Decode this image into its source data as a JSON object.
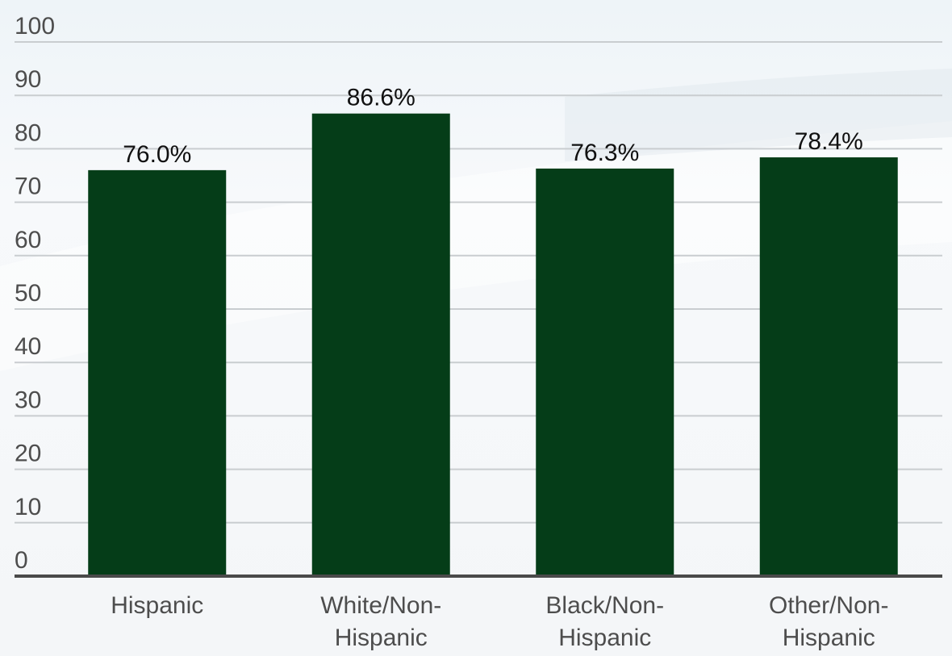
{
  "chart_data": {
    "type": "bar",
    "categories": [
      [
        "Hispanic"
      ],
      [
        "White/Non-",
        "Hispanic"
      ],
      [
        "Black/Non-",
        "Hispanic"
      ],
      [
        "Other/Non-",
        "Hispanic"
      ]
    ],
    "values": [
      76.0,
      86.6,
      76.3,
      78.4
    ],
    "data_labels": [
      "76.0%",
      "86.6%",
      "76.3%",
      "78.4%"
    ],
    "title": "",
    "xlabel": "",
    "ylabel": "",
    "ylim": [
      0,
      100
    ],
    "yticks": [
      "0",
      "10",
      "20",
      "30",
      "40",
      "50",
      "60",
      "70",
      "80",
      "90",
      "100"
    ],
    "grid": true,
    "legend": "none",
    "colors": {
      "bar": "#053d18",
      "grid": "#c9cdd0",
      "axis": "#4a4a4a",
      "tick_text": "#4d4d4d",
      "label_text": "#111111"
    }
  }
}
